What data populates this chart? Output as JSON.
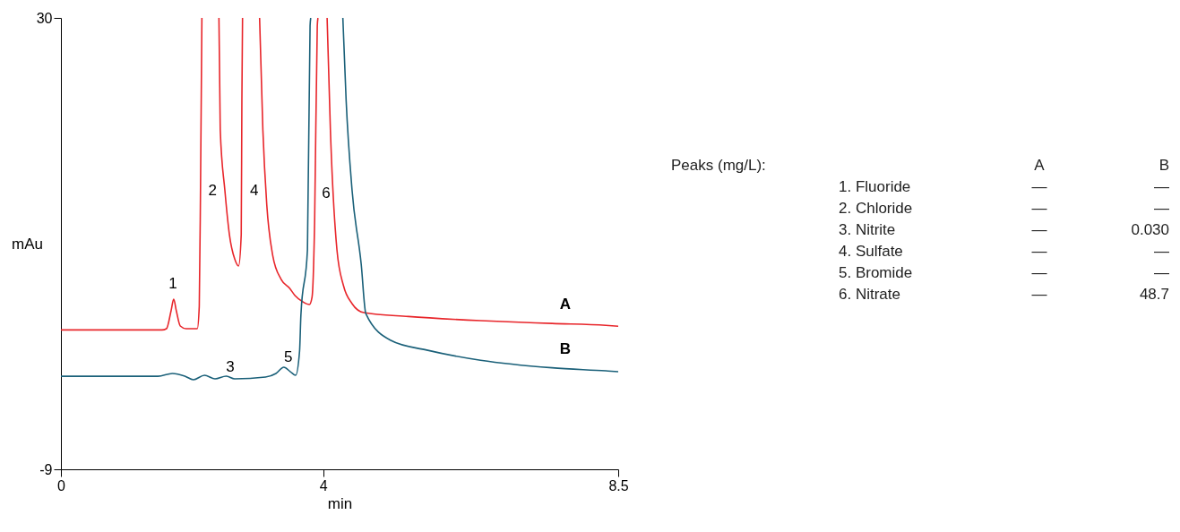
{
  "chart_data": [
    {
      "type": "line",
      "xlabel": "min",
      "ylabel": "mAu",
      "xlim": [
        0,
        8.5
      ],
      "ylim": [
        -9,
        30
      ],
      "xticks": [
        0,
        4,
        {
          "value": 8.5,
          "label": "8.5"
        }
      ],
      "yticks": [
        {
          "value": -9,
          "label": "-9"
        },
        30
      ],
      "grid": false,
      "line_style": "solid",
      "series": [
        {
          "name": "A",
          "color": "#e8262b",
          "x": [
            0,
            1.54,
            1.61,
            1.68,
            1.72,
            1.76,
            1.82,
            1.91,
            2.08,
            2.11,
            2.13,
            2.15,
            2.28,
            2.41,
            2.43,
            2.5,
            2.57,
            2.65,
            2.71,
            2.75,
            2.76,
            2.77,
            2.9,
            3.03,
            3.08,
            3.14,
            3.23,
            3.36,
            3.49,
            3.57,
            3.69,
            3.79,
            3.83,
            3.87,
            3.91,
            3.92,
            3.99,
            4.06,
            4.11,
            4.21,
            4.31,
            4.44,
            4.62,
            5.3,
            6.4,
            7.49,
            8.31,
            8.5
          ],
          "values": [
            3.04,
            3.04,
            3.15,
            4.7,
            5.7,
            4.7,
            3.38,
            3.15,
            3.15,
            5.08,
            15.92,
            30,
            null,
            30,
            20.33,
            15.14,
            11.27,
            9.18,
            8.57,
            11.27,
            22.88,
            30,
            null,
            30,
            20.33,
            13.83,
            9.49,
            7.4,
            6.63,
            6.01,
            5.47,
            5.24,
            5.86,
            12.59,
            29.3,
            30,
            null,
            30,
            20.33,
            9.96,
            6.86,
            5.32,
            4.54,
            4.2,
            3.84,
            3.6,
            3.44,
            3.36
          ]
        },
        {
          "name": "B",
          "color": "#1a6079",
          "x": [
            0,
            1.48,
            1.7,
            1.89,
            2.02,
            2.19,
            2.35,
            2.52,
            2.65,
            3.12,
            3.28,
            3.4,
            3.5,
            3.58,
            3.64,
            3.66,
            3.76,
            3.8,
            3.81,
            4.05,
            4.3,
            4.35,
            4.44,
            4.58,
            4.65,
            5.03,
            5.58,
            6.4,
            7.49,
            8.31,
            8.5
          ],
          "values": [
            -0.96,
            -0.96,
            -0.72,
            -0.95,
            -1.26,
            -0.88,
            -1.18,
            -0.95,
            -1.18,
            -1.03,
            -0.72,
            -0.18,
            -0.57,
            -0.88,
            1.21,
            4.31,
            9.96,
            29.3,
            30,
            null,
            30,
            22.88,
            15.14,
            8.72,
            4.46,
            2.14,
            1.3,
            0.42,
            -0.23,
            -0.49,
            -0.56
          ]
        }
      ],
      "annotations": [
        "1",
        "2",
        "3",
        "4",
        "5",
        "6"
      ]
    },
    {
      "type": "other",
      "title": "Peaks (mg/L):",
      "categories": [
        "1. Fluoride",
        "2. Chloride",
        "3. Nitrite",
        "4. Sulfate",
        "5. Bromide",
        "6. Nitrate"
      ],
      "series": [
        {
          "name": "A",
          "values": [
            null,
            null,
            null,
            null,
            null,
            null
          ],
          "value_labels": [
            "—",
            "—",
            "—",
            "—",
            "—",
            "—"
          ]
        },
        {
          "name": "B",
          "values": [
            null,
            null,
            0.03,
            null,
            null,
            48.7
          ],
          "value_labels": [
            "—",
            "—",
            "0.030",
            "—",
            "—",
            "48.7"
          ]
        }
      ]
    }
  ]
}
